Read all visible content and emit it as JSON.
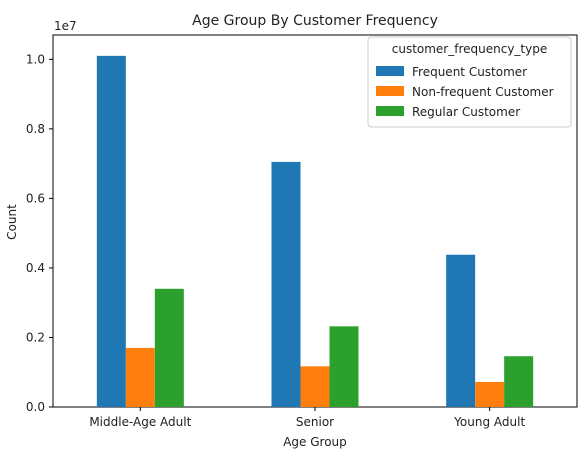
{
  "chart_data": {
    "type": "bar",
    "title": "Age Group By Customer Frequency",
    "xlabel": "Age Group",
    "ylabel": "Count",
    "y_multiplier_label": "1e7",
    "ylim": [
      0,
      1.07
    ],
    "y_ticks": [
      "0.0",
      "0.2",
      "0.4",
      "0.6",
      "0.8",
      "1.0"
    ],
    "categories": [
      "Middle-Age Adult",
      "Senior",
      "Young Adult"
    ],
    "legend_title": "customer_frequency_type",
    "legend_position": "top-right",
    "grid": false,
    "series": [
      {
        "name": "Frequent Customer",
        "color": "#1f77b4",
        "values": [
          1.01,
          0.705,
          0.438
        ]
      },
      {
        "name": "Non-frequent Customer",
        "color": "#ff7f0e",
        "values": [
          0.17,
          0.117,
          0.072
        ]
      },
      {
        "name": "Regular Customer",
        "color": "#2ca02c",
        "values": [
          0.34,
          0.232,
          0.146
        ]
      }
    ]
  }
}
